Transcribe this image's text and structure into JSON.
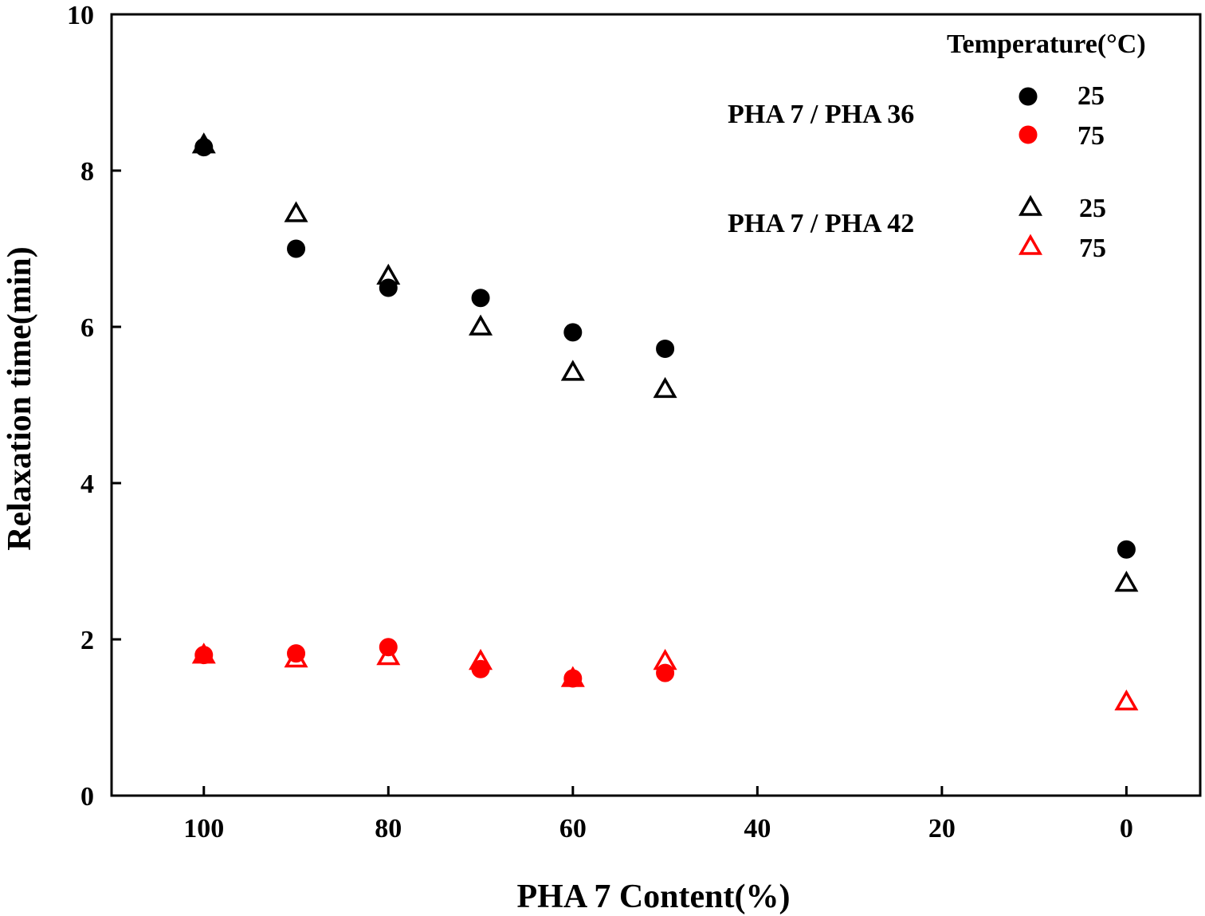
{
  "chart_data": {
    "type": "scatter",
    "xlabel": "PHA 7 Content(%)",
    "ylabel": "Relaxation time(min)",
    "xlim": [
      110,
      -8
    ],
    "ylim": [
      0,
      10
    ],
    "x_reversed": true,
    "xticks": [
      100,
      80,
      60,
      40,
      20,
      0
    ],
    "xtick_labels": [
      "100",
      "80",
      "60",
      "40",
      "20",
      "0"
    ],
    "yticks": [
      0,
      2,
      4,
      6,
      8,
      10
    ],
    "ytick_labels": [
      "0",
      "2",
      "4",
      "6",
      "8",
      "10"
    ],
    "grid": false,
    "legend": {
      "title": "Temperature(°C)",
      "placement": "top-right",
      "groups": [
        {
          "label": "PHA 7 / PHA 36",
          "entries": [
            {
              "label": "25",
              "marker": "circle",
              "color": "#000000"
            },
            {
              "label": "75",
              "marker": "circle",
              "color": "#ff0000"
            }
          ]
        },
        {
          "label": "PHA 7 / PHA 42",
          "entries": [
            {
              "label": "25",
              "marker": "triangle-open",
              "color": "#000000"
            },
            {
              "label": "75",
              "marker": "triangle-open",
              "color": "#ff0000"
            }
          ]
        }
      ]
    },
    "series": [
      {
        "name": "PHA 7 / PHA 36 25",
        "marker": "circle",
        "color": "#000000",
        "x": [
          100,
          90,
          80,
          70,
          60,
          50,
          0
        ],
        "y": [
          8.3,
          7.0,
          6.5,
          6.37,
          5.93,
          5.72,
          3.15
        ]
      },
      {
        "name": "PHA 7 / PHA 36 75",
        "marker": "circle",
        "color": "#ff0000",
        "x": [
          100,
          90,
          80,
          70,
          60,
          50
        ],
        "y": [
          1.8,
          1.82,
          1.9,
          1.62,
          1.5,
          1.57
        ]
      },
      {
        "name": "PHA 7 / PHA 42 25",
        "marker": "triangle-open",
        "color": "#000000",
        "x": [
          100,
          90,
          80,
          70,
          60,
          50,
          0
        ],
        "y": [
          8.33,
          7.45,
          6.65,
          6.0,
          5.42,
          5.2,
          2.72
        ]
      },
      {
        "name": "PHA 7 / PHA 42 75",
        "marker": "triangle-open",
        "color": "#ff0000",
        "x": [
          100,
          90,
          80,
          70,
          60,
          50,
          0
        ],
        "y": [
          1.8,
          1.75,
          1.78,
          1.72,
          1.5,
          1.72,
          1.2
        ]
      }
    ]
  }
}
